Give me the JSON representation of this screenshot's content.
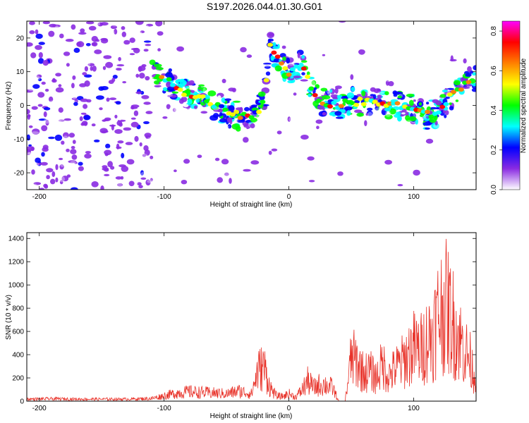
{
  "title": "S197.2026.044.01.30.G01",
  "chart_data": [
    {
      "type": "heatmap",
      "xlabel": "Height of straight line (km)",
      "ylabel": "Frequency (Hz)",
      "xlim": [
        -210,
        150
      ],
      "ylim": [
        -25,
        25
      ],
      "xticks": [
        -200,
        -100,
        0,
        100
      ],
      "yticks": [
        -20,
        -10,
        0,
        10,
        20
      ],
      "colorbar": {
        "label": "Normalized spectral amplitude",
        "range": [
          0,
          0.85
        ],
        "ticks": [
          0.0,
          0.2,
          0.4,
          0.6,
          0.8
        ],
        "colormap": [
          "#ffffff",
          "#8a2be2",
          "#0000ff",
          "#00ffff",
          "#00ff00",
          "#ffff00",
          "#ff8000",
          "#ff0000",
          "#ff00ff"
        ]
      },
      "track": {
        "x": [
          -110,
          -100,
          -90,
          -80,
          -70,
          -60,
          -50,
          -40,
          -30,
          -20,
          -15,
          -10,
          0,
          10,
          20,
          25,
          40,
          50,
          60,
          70,
          80,
          90,
          100,
          110,
          120,
          130,
          140,
          145
        ],
        "y": [
          10,
          8,
          5,
          3,
          2,
          0,
          -2,
          -3,
          -4,
          1,
          18,
          15,
          10,
          12,
          3,
          1,
          0,
          1,
          1,
          1,
          0,
          0,
          -1,
          -3,
          -2,
          3,
          6,
          8
        ]
      },
      "grid": false
    },
    {
      "type": "line",
      "xlabel": "Height of straight line (km)",
      "ylabel": "SNR (10 * v/v)",
      "xlim": [
        -210,
        150
      ],
      "ylim": [
        0,
        1450
      ],
      "xticks": [
        -200,
        -100,
        0,
        100
      ],
      "yticks": [
        0,
        200,
        400,
        600,
        800,
        1000,
        1200,
        1400
      ],
      "color": "#e8332a",
      "envelope": {
        "x": [
          -210,
          -190,
          -170,
          -150,
          -130,
          -110,
          -100,
          -90,
          -80,
          -70,
          -60,
          -50,
          -40,
          -30,
          -25,
          -20,
          -15,
          -10,
          -5,
          0,
          5,
          10,
          15,
          20,
          25,
          30,
          35,
          40,
          45,
          50,
          55,
          60,
          65,
          70,
          75,
          80,
          85,
          90,
          95,
          100,
          105,
          110,
          115,
          120,
          125,
          130,
          135,
          140,
          145,
          150
        ],
        "y": [
          30,
          35,
          30,
          30,
          30,
          40,
          80,
          120,
          140,
          130,
          120,
          110,
          150,
          110,
          450,
          520,
          200,
          80,
          70,
          110,
          60,
          150,
          300,
          200,
          250,
          240,
          200,
          0,
          0,
          650,
          580,
          420,
          450,
          350,
          560,
          380,
          480,
          560,
          680,
          800,
          750,
          900,
          1000,
          1300,
          1440,
          1250,
          1000,
          800,
          620,
          300
        ]
      },
      "grid": false
    }
  ]
}
